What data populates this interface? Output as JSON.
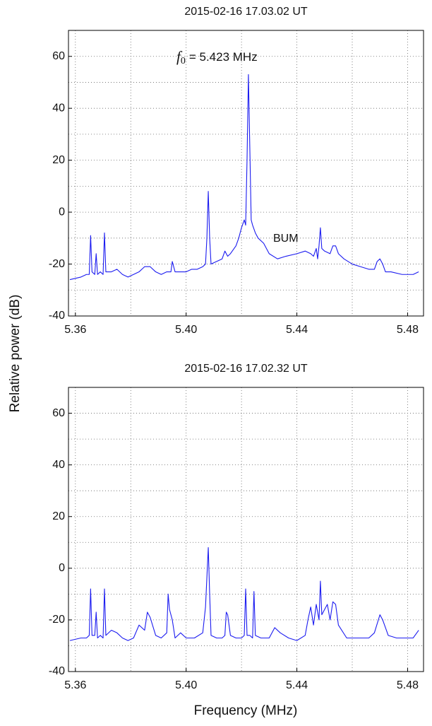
{
  "shared": {
    "ylabel": "Relative power (dB)",
    "xlabel": "Frequency (MHz)"
  },
  "chart_data": [
    {
      "type": "line",
      "title": "2015-02-16 17.03.02 UT",
      "annotations": [
        {
          "symbol": "f",
          "subscript": "0",
          "text": "= 5.423 MHz"
        },
        {
          "text": "BUM"
        }
      ],
      "xlim": [
        5.3575,
        5.48575
      ],
      "xticks": [
        5.36,
        {
          "value": 5.4,
          "label": "5.40"
        },
        5.44,
        5.48
      ],
      "xticks_minor": [
        5.38,
        5.42,
        5.46
      ],
      "ylim": [
        -40,
        70
      ],
      "yticks": [
        -40,
        -20,
        0,
        20,
        40,
        60
      ],
      "yticks_minor": [
        -30,
        -10,
        10,
        30,
        50
      ],
      "grid": true,
      "series": [
        {
          "color": "#1c1cf0",
          "x": [
            5.358,
            5.362,
            5.364,
            5.365,
            5.3655,
            5.366,
            5.367,
            5.3675,
            5.368,
            5.369,
            5.37,
            5.3705,
            5.371,
            5.373,
            5.375,
            5.377,
            5.379,
            5.381,
            5.383,
            5.385,
            5.387,
            5.389,
            5.391,
            5.393,
            5.3945,
            5.395,
            5.396,
            5.398,
            5.4,
            5.402,
            5.404,
            5.406,
            5.407,
            5.4075,
            5.408,
            5.4085,
            5.409,
            5.411,
            5.413,
            5.414,
            5.415,
            5.416,
            5.418,
            5.419,
            5.42,
            5.421,
            5.4215,
            5.422,
            5.4225,
            5.423,
            5.4235,
            5.424,
            5.425,
            5.426,
            5.428,
            5.43,
            5.433,
            5.436,
            5.44,
            5.443,
            5.445,
            5.446,
            5.447,
            5.4475,
            5.448,
            5.4485,
            5.449,
            5.45,
            5.452,
            5.453,
            5.454,
            5.455,
            5.457,
            5.46,
            5.463,
            5.466,
            5.468,
            5.469,
            5.47,
            5.471,
            5.472,
            5.474,
            5.478,
            5.482,
            5.484
          ],
          "values": [
            -26,
            -25,
            -24,
            -24,
            -9,
            -23,
            -24,
            -16,
            -24,
            -23,
            -24,
            -8,
            -23,
            -23,
            -22,
            -24,
            -25,
            -24,
            -23,
            -21,
            -21,
            -23,
            -24,
            -23,
            -23,
            -19,
            -23,
            -23,
            -23,
            -22,
            -22,
            -21,
            -20,
            -10,
            8,
            -10,
            -20,
            -19,
            -18,
            -15,
            -17,
            -16,
            -13,
            -10,
            -6,
            -3,
            -5,
            20,
            53,
            25,
            -3,
            -5,
            -8,
            -10,
            -12,
            -16,
            -18,
            -17,
            -16,
            -15,
            -16,
            -17,
            -14,
            -18,
            -13,
            -6,
            -14,
            -15,
            -16,
            -13,
            -13,
            -16,
            -18,
            -20,
            -21,
            -22,
            -22,
            -19,
            -18,
            -20,
            -23,
            -23,
            -24,
            -24,
            -23
          ]
        }
      ]
    },
    {
      "type": "line",
      "title": "2015-02-16 17.02.32 UT",
      "xlim": [
        5.3575,
        5.48575
      ],
      "xticks": [
        5.36,
        {
          "value": 5.4,
          "label": "5.40"
        },
        5.44,
        5.48
      ],
      "xticks_minor": [
        5.38,
        5.42,
        5.46
      ],
      "ylim": [
        -40,
        70
      ],
      "yticks": [
        -40,
        -20,
        0,
        20,
        40,
        60
      ],
      "yticks_minor": [
        -30,
        -10,
        10,
        30,
        50
      ],
      "grid": true,
      "series": [
        {
          "color": "#1c1cf0",
          "x": [
            5.358,
            5.362,
            5.364,
            5.365,
            5.3655,
            5.366,
            5.367,
            5.3675,
            5.368,
            5.369,
            5.37,
            5.3705,
            5.371,
            5.373,
            5.375,
            5.377,
            5.379,
            5.381,
            5.383,
            5.385,
            5.386,
            5.387,
            5.389,
            5.391,
            5.393,
            5.3935,
            5.394,
            5.395,
            5.396,
            5.398,
            5.4,
            5.403,
            5.406,
            5.407,
            5.408,
            5.4085,
            5.409,
            5.411,
            5.413,
            5.414,
            5.4145,
            5.415,
            5.416,
            5.418,
            5.42,
            5.421,
            5.4215,
            5.422,
            5.423,
            5.424,
            5.4245,
            5.425,
            5.427,
            5.43,
            5.432,
            5.434,
            5.437,
            5.44,
            5.443,
            5.444,
            5.445,
            5.446,
            5.447,
            5.448,
            5.4485,
            5.449,
            5.45,
            5.451,
            5.452,
            5.453,
            5.454,
            5.455,
            5.458,
            5.462,
            5.466,
            5.468,
            5.47,
            5.471,
            5.473,
            5.476,
            5.48,
            5.482,
            5.484
          ],
          "values": [
            -28,
            -27,
            -27,
            -26,
            -8,
            -26,
            -26,
            -17,
            -27,
            -26,
            -27,
            -8,
            -26,
            -24,
            -25,
            -27,
            -28,
            -27,
            -22,
            -24,
            -17,
            -19,
            -26,
            -27,
            -25,
            -10,
            -16,
            -20,
            -27,
            -25,
            -27,
            -27,
            -25,
            -15,
            8,
            -10,
            -26,
            -27,
            -27,
            -26,
            -17,
            -18,
            -26,
            -27,
            -27,
            -26,
            -8,
            -26,
            -26,
            -27,
            -9,
            -26,
            -27,
            -27,
            -23,
            -25,
            -27,
            -28,
            -26,
            -20,
            -15,
            -22,
            -14,
            -20,
            -5,
            -18,
            -16,
            -14,
            -20,
            -13,
            -14,
            -22,
            -27,
            -27,
            -27,
            -25,
            -18,
            -20,
            -26,
            -27,
            -27,
            -27,
            -24
          ]
        }
      ]
    }
  ]
}
